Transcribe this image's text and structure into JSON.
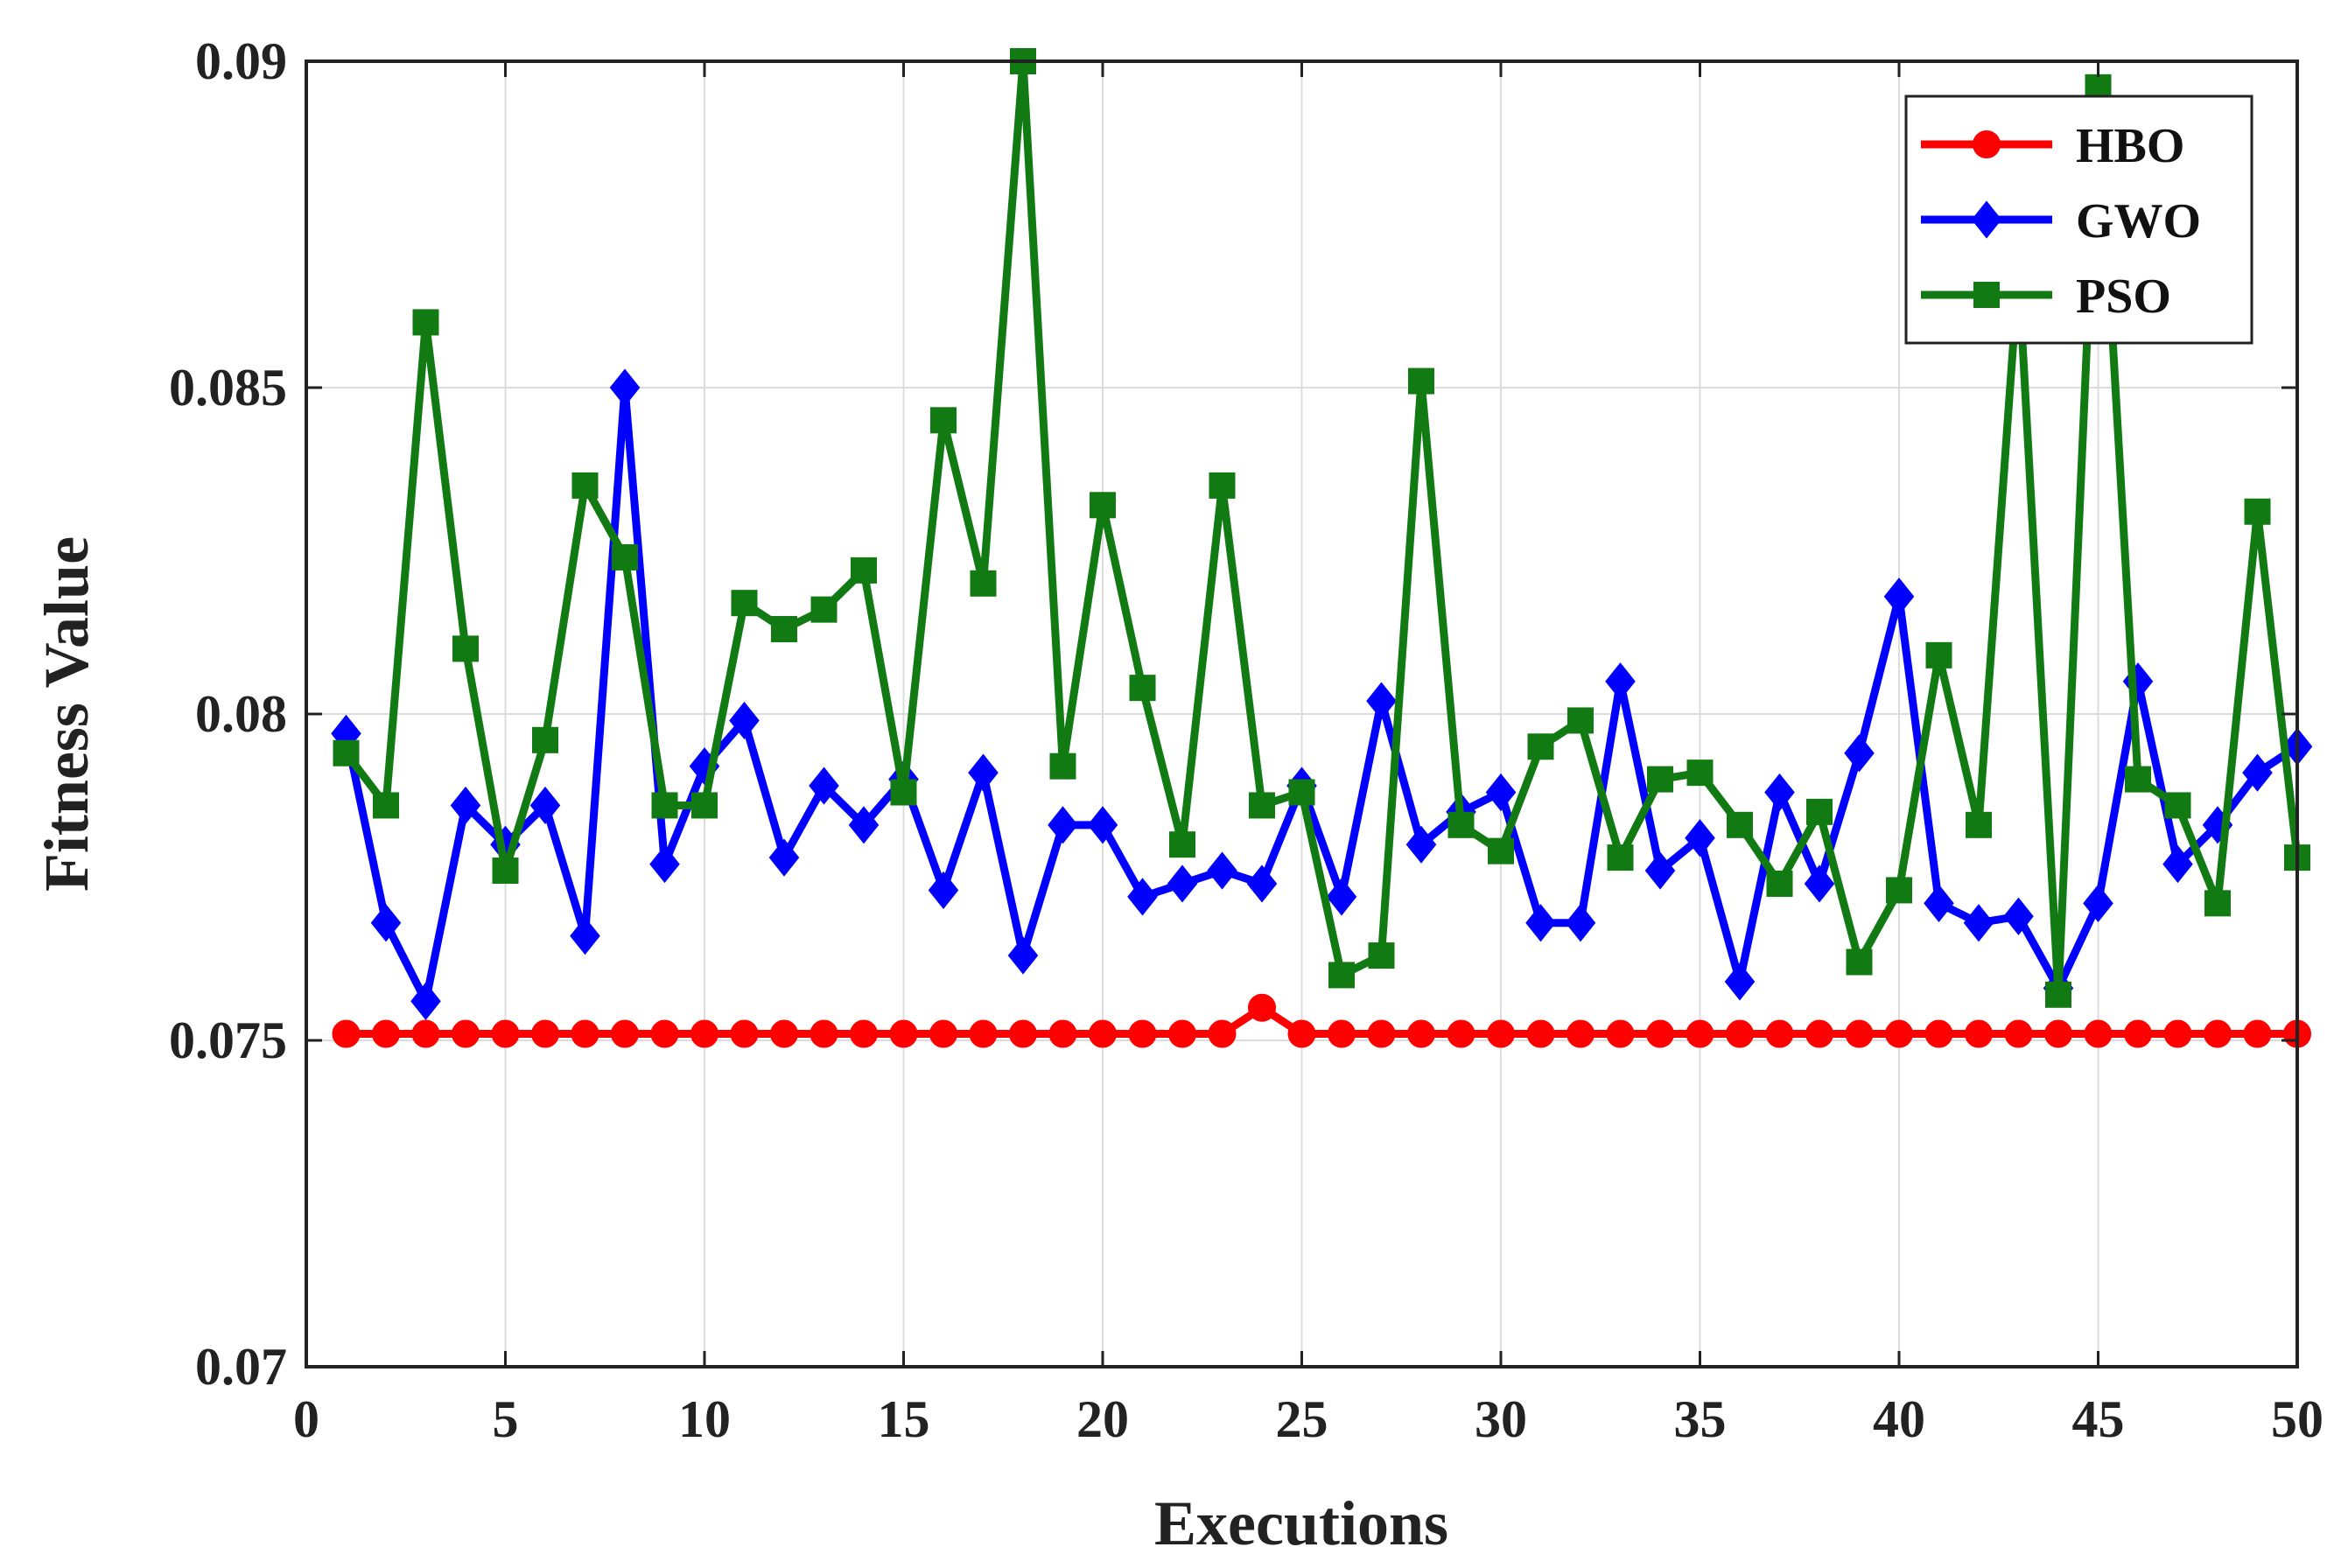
{
  "chart_data": {
    "type": "line",
    "title": "",
    "xlabel": "Executions",
    "ylabel": "Fitness Value",
    "xlim": [
      0,
      50
    ],
    "ylim": [
      0.07,
      0.09
    ],
    "xticks": [
      0,
      5,
      10,
      15,
      20,
      25,
      30,
      35,
      40,
      45,
      50
    ],
    "xtick_labels": [
      "0",
      "5",
      "10",
      "15",
      "20",
      "25",
      "30",
      "35",
      "40",
      "45",
      "50"
    ],
    "yticks": [
      0.07,
      0.075,
      0.08,
      0.085,
      0.09
    ],
    "ytick_labels": [
      "0.07",
      "0.075",
      "0.08",
      "0.085",
      "0.09"
    ],
    "grid": true,
    "legend_position": "top-right",
    "x": [
      1,
      2,
      3,
      4,
      5,
      6,
      7,
      8,
      9,
      10,
      11,
      12,
      13,
      14,
      15,
      16,
      17,
      18,
      19,
      20,
      21,
      22,
      23,
      24,
      25,
      26,
      27,
      28,
      29,
      30,
      31,
      32,
      33,
      34,
      35,
      36,
      37,
      38,
      39,
      40,
      41,
      42,
      43,
      44,
      45,
      46,
      47,
      48,
      49,
      50
    ],
    "series": [
      {
        "name": "HBO",
        "color": "#ff0000",
        "marker": "circle",
        "values": [
          0.0751,
          0.0751,
          0.0751,
          0.0751,
          0.0751,
          0.0751,
          0.0751,
          0.0751,
          0.0751,
          0.0751,
          0.0751,
          0.0751,
          0.0751,
          0.0751,
          0.0751,
          0.0751,
          0.0751,
          0.0751,
          0.0751,
          0.0751,
          0.0751,
          0.0751,
          0.0751,
          0.0755,
          0.0751,
          0.0751,
          0.0751,
          0.0751,
          0.0751,
          0.0751,
          0.0751,
          0.0751,
          0.0751,
          0.0751,
          0.0751,
          0.0751,
          0.0751,
          0.0751,
          0.0751,
          0.0751,
          0.0751,
          0.0751,
          0.0751,
          0.0751,
          0.0751,
          0.0751,
          0.0751,
          0.0751,
          0.0751,
          0.0751
        ]
      },
      {
        "name": "GWO",
        "color": "#0000ff",
        "marker": "diamond",
        "values": [
          0.0797,
          0.0768,
          0.0756,
          0.0786,
          0.078,
          0.0786,
          0.0766,
          0.085,
          0.0777,
          0.0792,
          0.0799,
          0.0778,
          0.0789,
          0.0783,
          0.079,
          0.0773,
          0.0791,
          0.0763,
          0.0783,
          0.0783,
          0.0772,
          0.0774,
          0.0776,
          0.0774,
          0.0789,
          0.0772,
          0.0802,
          0.078,
          0.0785,
          0.0788,
          0.0768,
          0.0768,
          0.0805,
          0.0776,
          0.0781,
          0.0759,
          0.0788,
          0.0774,
          0.0794,
          0.0818,
          0.0771,
          0.0768,
          0.0769,
          0.0758,
          0.0771,
          0.0805,
          0.0777,
          0.0783,
          0.0791,
          0.0795
        ]
      },
      {
        "name": "PSO",
        "color": "#127a12",
        "marker": "square",
        "values": [
          0.0794,
          0.0786,
          0.086,
          0.081,
          0.0776,
          0.0796,
          0.0835,
          0.0824,
          0.0786,
          0.0786,
          0.0817,
          0.0813,
          0.0816,
          0.0822,
          0.0788,
          0.0845,
          0.082,
          0.09,
          0.0792,
          0.0832,
          0.0804,
          0.078,
          0.0835,
          0.0786,
          0.0788,
          0.076,
          0.0763,
          0.0851,
          0.0783,
          0.0779,
          0.0795,
          0.0799,
          0.0778,
          0.079,
          0.0791,
          0.0783,
          0.0774,
          0.0785,
          0.0762,
          0.0773,
          0.0809,
          0.0783,
          0.0868,
          0.0757,
          0.0896,
          0.079,
          0.0786,
          0.0771,
          0.0831,
          0.0778
        ]
      }
    ]
  }
}
